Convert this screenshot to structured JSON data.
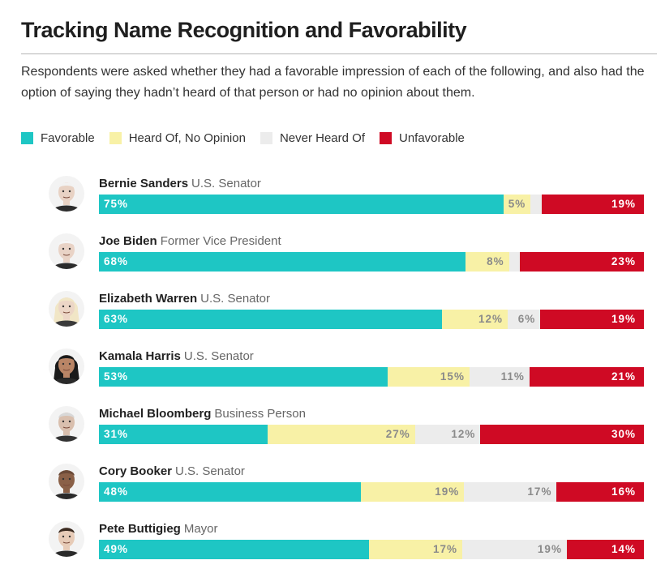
{
  "title": "Tracking Name Recognition and Favorability",
  "subtitle": "Respondents were asked whether they had a favorable impression of each of the following, and also had the option of saying they hadn’t heard of that person or had no opinion about them.",
  "colors": {
    "favorable": "#1ec6c4",
    "no_opinion": "#f8f1a6",
    "never_heard": "#ececec",
    "unfavorable": "#cf0a24"
  },
  "legend": [
    {
      "label": "Favorable",
      "color": "#1ec6c4"
    },
    {
      "label": "Heard Of, No Opinion",
      "color": "#f8f1a6"
    },
    {
      "label": "Never Heard Of",
      "color": "#ececec"
    },
    {
      "label": "Unfavorable",
      "color": "#cf0a24"
    }
  ],
  "chart_data": {
    "type": "bar",
    "orientation": "horizontal",
    "stacked": true,
    "title": "Tracking Name Recognition and Favorability",
    "categories": [
      "Bernie Sanders",
      "Joe Biden",
      "Elizabeth Warren",
      "Kamala Harris",
      "Michael Bloomberg",
      "Cory Booker",
      "Pete Buttigieg"
    ],
    "roles": [
      "U.S. Senator",
      "Former Vice President",
      "U.S. Senator",
      "U.S. Senator",
      "Business Person",
      "U.S. Senator",
      "Mayor"
    ],
    "avatars": [
      "bernie-sanders-icon",
      "joe-biden-icon",
      "elizabeth-warren-icon",
      "kamala-harris-icon",
      "michael-bloomberg-icon",
      "cory-booker-icon",
      "pete-buttigieg-icon"
    ],
    "series": [
      {
        "name": "Favorable",
        "values": [
          75,
          68,
          63,
          53,
          31,
          48,
          49
        ],
        "labels": [
          "75%",
          "68%",
          "63%",
          "53%",
          "31%",
          "48%",
          "49%"
        ]
      },
      {
        "name": "Heard Of, No Opinion",
        "values": [
          5,
          8,
          12,
          15,
          27,
          19,
          17
        ],
        "labels": [
          "5%",
          "8%",
          "12%",
          "15%",
          "27%",
          "19%",
          "17%"
        ]
      },
      {
        "name": "Never Heard Of",
        "values": [
          2,
          2,
          6,
          11,
          12,
          17,
          19
        ],
        "labels": [
          "",
          "",
          "6%",
          "11%",
          "12%",
          "17%",
          "19%"
        ]
      },
      {
        "name": "Unfavorable",
        "values": [
          19,
          23,
          19,
          21,
          30,
          16,
          14
        ],
        "labels": [
          "19%",
          "23%",
          "19%",
          "21%",
          "30%",
          "16%",
          "14%"
        ]
      }
    ],
    "legend_position": "top-left",
    "grid": false,
    "xlim": [
      0,
      100
    ]
  }
}
